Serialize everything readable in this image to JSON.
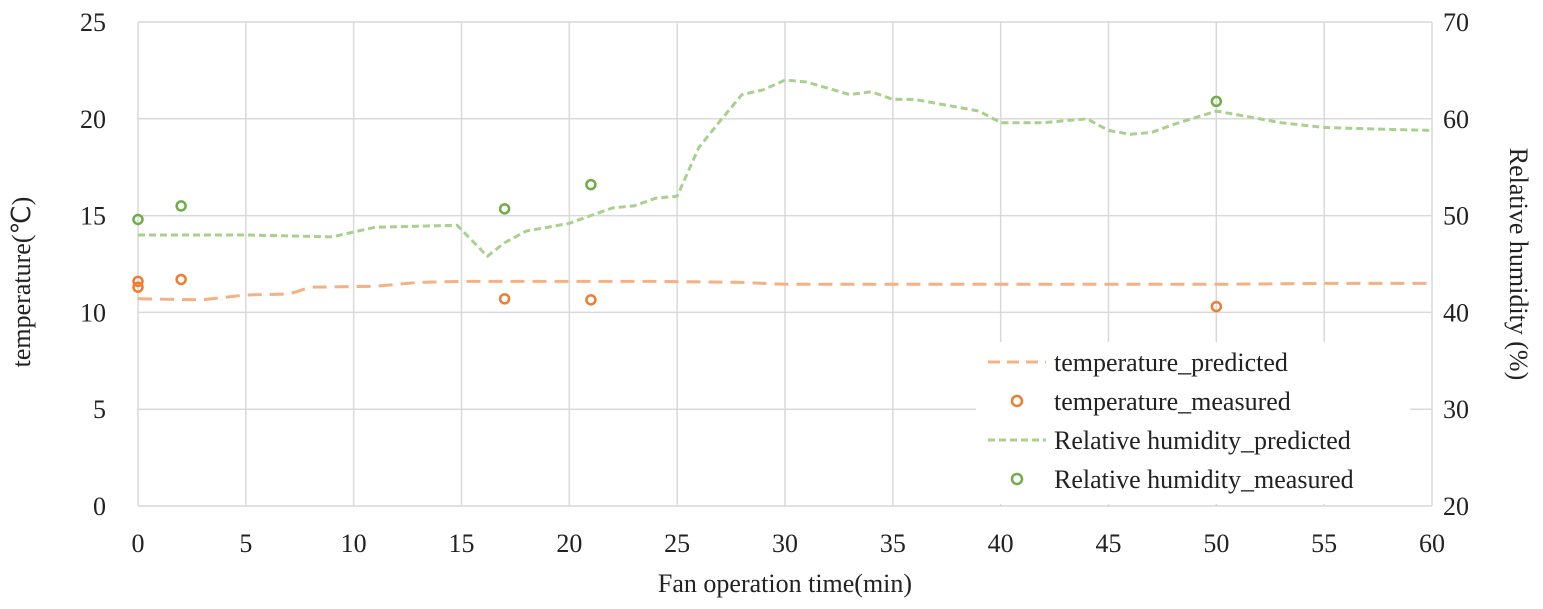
{
  "chart_data": {
    "type": "line",
    "xlabel": "Fan operation time(min)",
    "ylabel_left": "temperature(℃)",
    "ylabel_right": "Relative humidity (%)",
    "xlim": [
      0,
      60
    ],
    "x_ticks": [
      "0",
      "5",
      "10",
      "15",
      "20",
      "25",
      "30",
      "35",
      "40",
      "45",
      "50",
      "55",
      "60"
    ],
    "ylim_left": [
      0,
      25
    ],
    "y_ticks_left": [
      "0",
      "5",
      "10",
      "15",
      "20",
      "25"
    ],
    "ylim_right": [
      20,
      70
    ],
    "y_ticks_right": [
      "20",
      "30",
      "40",
      "50",
      "60",
      "70"
    ],
    "grid": true,
    "legend_position": "bottom-right",
    "colors": {
      "temperature": "#ED7D31",
      "temperature_line": "#F4B183",
      "humidity": "#70AD47",
      "humidity_line": "#A9D18E",
      "grid": "#d9d9d9"
    },
    "series": [
      {
        "name": "temperature_predicted",
        "kind": "dashed-line",
        "axis": "left",
        "x": [
          0,
          3,
          5,
          7,
          8,
          11,
          13,
          15,
          17,
          20,
          24,
          28,
          30,
          35,
          40,
          45,
          50,
          55,
          60
        ],
        "y": [
          10.7,
          10.65,
          10.9,
          10.95,
          11.3,
          11.35,
          11.55,
          11.6,
          11.6,
          11.6,
          11.6,
          11.55,
          11.45,
          11.45,
          11.45,
          11.45,
          11.45,
          11.5,
          11.5
        ]
      },
      {
        "name": "temperature_measured",
        "kind": "scatter",
        "axis": "left",
        "x": [
          0,
          0,
          2,
          17,
          21,
          50
        ],
        "y": [
          11.6,
          11.3,
          11.7,
          10.7,
          10.65,
          10.3
        ]
      },
      {
        "name": "Relative humidity_predicted",
        "kind": "dashed-line",
        "axis": "right",
        "x": [
          0,
          5,
          9,
          11,
          14.8,
          16.2,
          17,
          18,
          20,
          22,
          23,
          24,
          25,
          26,
          27,
          28,
          29,
          30,
          31,
          33,
          34,
          35,
          36,
          38,
          39,
          40,
          42,
          44,
          45,
          46,
          47,
          48,
          50,
          51,
          53,
          55,
          58,
          60
        ],
        "y": [
          48,
          48,
          47.8,
          48.8,
          49,
          45.8,
          47.2,
          48.4,
          49.2,
          50.8,
          51,
          51.8,
          52,
          57,
          59.8,
          62.5,
          63,
          64,
          63.8,
          62.5,
          62.8,
          62,
          62,
          61.2,
          60.8,
          59.6,
          59.6,
          60,
          58.8,
          58.4,
          58.6,
          59.4,
          60.8,
          60.4,
          59.6,
          59.1,
          58.9,
          58.8
        ]
      },
      {
        "name": "Relative humidity_measured",
        "kind": "scatter",
        "axis": "right",
        "x": [
          0,
          2,
          17,
          21,
          50
        ],
        "y": [
          49.6,
          51,
          50.7,
          53.2,
          61.8
        ]
      }
    ]
  }
}
